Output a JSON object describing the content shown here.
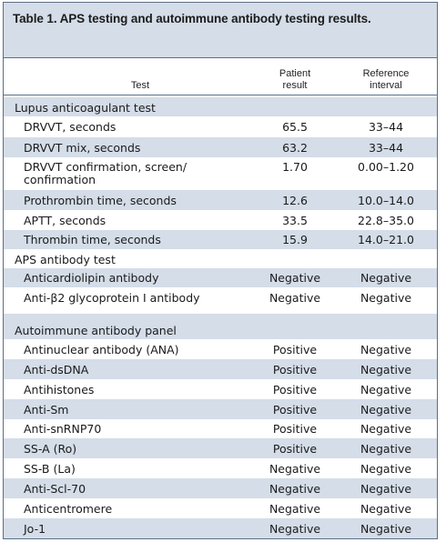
{
  "caption": "Table 1. APS testing and autoimmune antibody testing results.",
  "headers": {
    "test": "Test",
    "patient": [
      "Patient",
      "result"
    ],
    "reference": [
      "Reference",
      "interval"
    ]
  },
  "sections": [
    {
      "label": "Lupus anticoagulant test",
      "rows": [
        {
          "test": "DRVVT, seconds",
          "patient": "65.5",
          "reference": "33–44"
        },
        {
          "test": "DRVVT mix, seconds",
          "patient": "63.2",
          "reference": "33–44"
        },
        {
          "test": "DRVVT confirmation, screen/",
          "test2": "confirmation",
          "patient": "1.70",
          "reference": "0.00–1.20"
        },
        {
          "test": "Prothrombin time, seconds",
          "patient": "12.6",
          "reference": "10.0–14.0"
        },
        {
          "test": "APTT, seconds",
          "patient": "33.5",
          "reference": "22.8–35.0"
        },
        {
          "test": "Thrombin time, seconds",
          "patient": "15.9",
          "reference": "14.0–21.0"
        }
      ]
    },
    {
      "label": "APS antibody test",
      "rows": [
        {
          "test": "Anticardiolipin antibody",
          "patient": "Negative",
          "reference": "Negative"
        },
        {
          "test": "Anti-β2 glycoprotein I antibody",
          "patient": "Negative",
          "reference": "Negative"
        }
      ]
    },
    {
      "label": "Autoimmune antibody panel",
      "rows": [
        {
          "test": "Antinuclear antibody (ANA)",
          "patient": "Positive",
          "reference": "Negative"
        },
        {
          "test": "Anti-dsDNA",
          "patient": "Positive",
          "reference": "Negative"
        },
        {
          "test": "Antihistones",
          "patient": "Positive",
          "reference": "Negative"
        },
        {
          "test": "Anti-Sm",
          "patient": "Positive",
          "reference": "Negative"
        },
        {
          "test": "Anti-snRNP70",
          "patient": "Positive",
          "reference": "Negative"
        },
        {
          "test": "SS-A (Ro)",
          "patient": "Positive",
          "reference": "Negative"
        },
        {
          "test": "SS-B (La)",
          "patient": "Negative",
          "reference": "Negative"
        },
        {
          "test": "Anti-Scl-70",
          "patient": "Negative",
          "reference": "Negative"
        },
        {
          "test": "Anticentromere",
          "patient": "Negative",
          "reference": "Negative"
        },
        {
          "test": "Jo-1",
          "patient": "Negative",
          "reference": "Negative"
        }
      ]
    }
  ]
}
